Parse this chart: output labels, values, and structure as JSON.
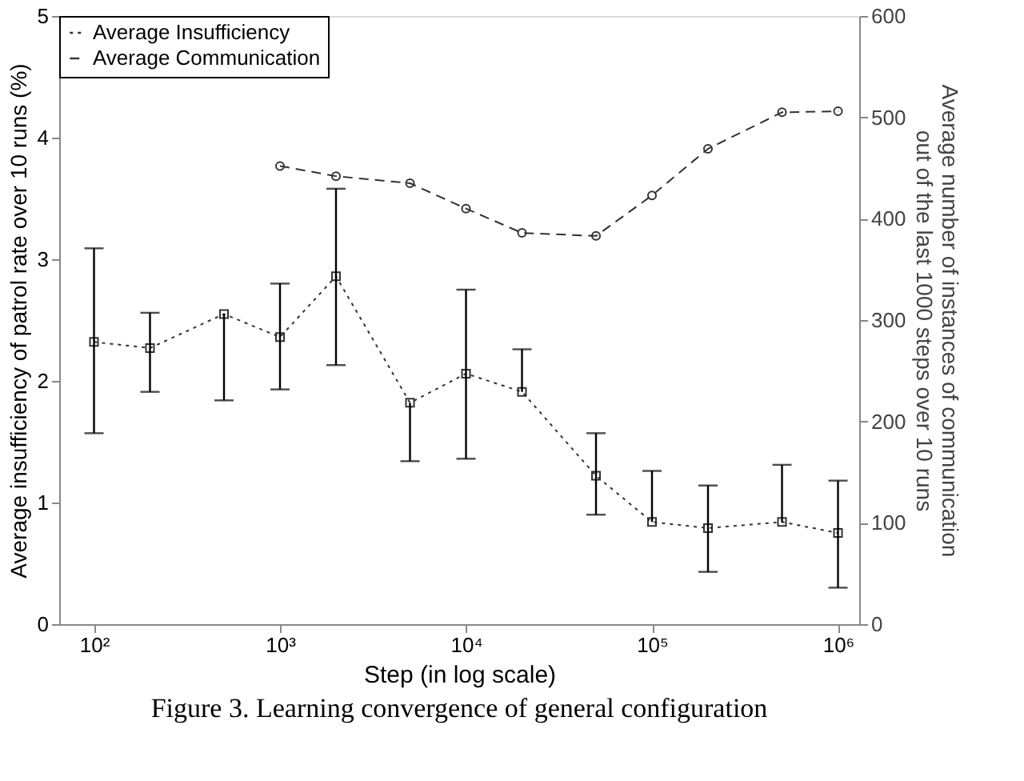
{
  "chart_data": {
    "type": "line",
    "xlabel": "Step (in log scale)",
    "ylabel": "Average insufficiency of patrol rate over 10 runs (%)",
    "y2label": "Average number of instances of communication out of the last 1000 steps over 10 runs",
    "annotations": [
      "Figure 3. Learning convergence of general configuration"
    ],
    "log": "x",
    "xlim": [
      65,
      1300000
    ],
    "xticks": [
      {
        "value": 100,
        "label": "10²"
      },
      {
        "value": 1000,
        "label": "10³"
      },
      {
        "value": 10000,
        "label": "10⁴"
      },
      {
        "value": 100000,
        "label": "10⁵"
      },
      {
        "value": 1000000,
        "label": "10⁶"
      }
    ],
    "ylim": [
      0,
      5
    ],
    "yticks": [
      0,
      1,
      2,
      3,
      4,
      5
    ],
    "y2lim": [
      0,
      600
    ],
    "y2ticks": [
      0,
      100,
      200,
      300,
      400,
      500,
      600
    ],
    "legend": "top left",
    "grid": false,
    "series": [
      {
        "name": "Average Insufficiency",
        "color": "#333333",
        "marker": "square",
        "line_style": "dotted",
        "x": [
          100,
          200,
          500,
          1000,
          2000,
          5000,
          10000,
          20000,
          50000,
          100000,
          200000,
          500000,
          1000000
        ],
        "values": [
          2.32,
          2.27,
          2.55,
          2.36,
          2.86,
          1.82,
          2.06,
          1.91,
          1.22,
          0.84,
          0.79,
          0.84,
          0.75
        ],
        "errors": [
          [
            1.57,
            3.09
          ],
          [
            1.91,
            2.56
          ],
          [
            1.84,
            2.55
          ],
          [
            1.93,
            2.8
          ],
          [
            2.13,
            3.58
          ],
          [
            1.34,
            1.82
          ],
          [
            1.36,
            2.75
          ],
          [
            1.91,
            2.26
          ],
          [
            0.9,
            1.57
          ],
          [
            0.84,
            1.26
          ],
          [
            0.43,
            1.14
          ],
          [
            0.84,
            1.31
          ],
          [
            0.3,
            1.18
          ]
        ]
      },
      {
        "name": "Average Communication",
        "color": "#333333",
        "marker": "circle",
        "line_style": "dashed",
        "axis": "y2",
        "x": [
          1000,
          2000,
          5000,
          10000,
          20000,
          50000,
          100000,
          200000,
          500000,
          1000000
        ],
        "values": [
          452,
          442,
          435,
          410,
          386,
          383,
          423,
          469,
          505,
          506
        ]
      }
    ]
  }
}
